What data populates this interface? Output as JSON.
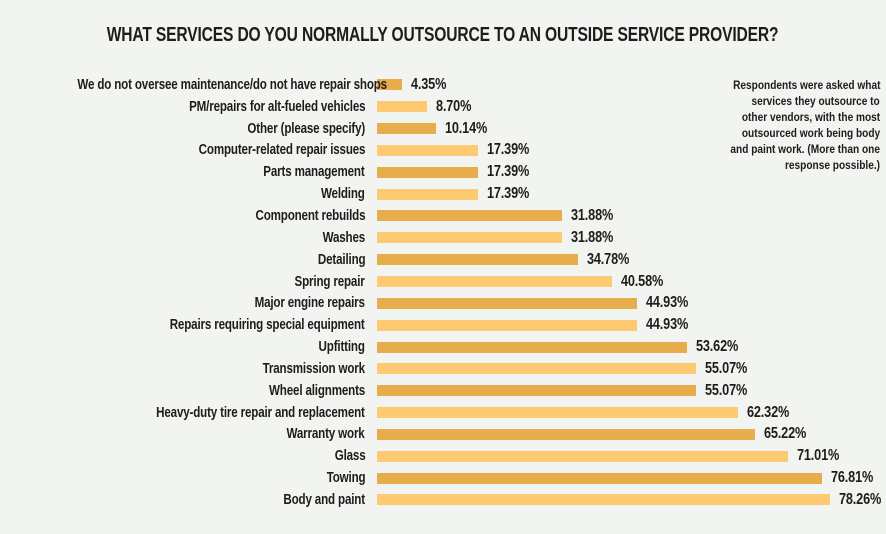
{
  "title": "WHAT SERVICES DO YOU NORMALLY OUTSOURCE TO AN OUTSIDE SERVICE PROVIDER?",
  "colors": {
    "background": "#f2f4f2",
    "text": "#1d1d1b",
    "bar_dark": "#e7ad4a",
    "bar_light": "#fdca72"
  },
  "note": {
    "lines": [
      "Respondents were asked what",
      "services they outsource to",
      "other vendors, with the most",
      "outsourced work being body",
      "and paint work. (More than one",
      "response possible.)"
    ]
  },
  "chart_data": {
    "type": "bar",
    "orientation": "horizontal",
    "title": "WHAT SERVICES DO YOU NORMALLY OUTSOURCE TO AN OUTSIDE SERVICE PROVIDER?",
    "xlabel": "",
    "ylabel": "",
    "xlim": [
      0,
      80
    ],
    "grid": false,
    "legend": false,
    "bar_color_alternation": [
      "#e7ad4a",
      "#fdca72"
    ],
    "categories": [
      "We do not oversee maintenance/do not have repair shops",
      "PM/repairs for alt-fueled vehicles",
      "Other (please specify)",
      "Computer-related repair issues",
      "Parts management",
      "Welding",
      "Component rebuilds",
      "Washes",
      "Detailing",
      "Spring repair",
      "Major engine repairs",
      "Repairs requiring special equipment",
      "Upfitting",
      "Transmission work",
      "Wheel alignments",
      "Heavy-duty tire repair and replacement",
      "Warranty work",
      "Glass",
      "Towing",
      "Body and paint"
    ],
    "values": [
      4.35,
      8.7,
      10.14,
      17.39,
      17.39,
      17.39,
      31.88,
      31.88,
      34.78,
      40.58,
      44.93,
      44.93,
      53.62,
      55.07,
      55.07,
      62.32,
      65.22,
      71.01,
      76.81,
      78.26
    ],
    "value_labels": [
      "4.35%",
      "8.70%",
      "10.14%",
      "17.39%",
      "17.39%",
      "17.39%",
      "31.88%",
      "31.88%",
      "34.78%",
      "40.58%",
      "44.93%",
      "44.93%",
      "53.62%",
      "55.07%",
      "55.07%",
      "62.32%",
      "65.22%",
      "71.01%",
      "76.81%",
      "78.26%"
    ]
  }
}
